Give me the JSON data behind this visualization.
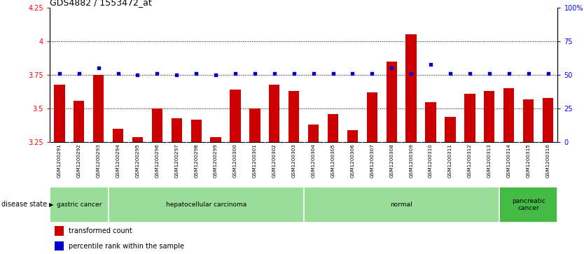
{
  "title": "GDS4882 / 1553472_at",
  "categories": [
    "GSM1200291",
    "GSM1200292",
    "GSM1200293",
    "GSM1200294",
    "GSM1200295",
    "GSM1200296",
    "GSM1200297",
    "GSM1200298",
    "GSM1200299",
    "GSM1200300",
    "GSM1200301",
    "GSM1200302",
    "GSM1200303",
    "GSM1200304",
    "GSM1200305",
    "GSM1200306",
    "GSM1200307",
    "GSM1200308",
    "GSM1200309",
    "GSM1200310",
    "GSM1200311",
    "GSM1200312",
    "GSM1200313",
    "GSM1200314",
    "GSM1200315",
    "GSM1200316"
  ],
  "red_values": [
    3.68,
    3.56,
    3.75,
    3.35,
    3.29,
    3.5,
    3.43,
    3.42,
    3.29,
    3.64,
    3.5,
    3.68,
    3.63,
    3.38,
    3.46,
    3.34,
    3.62,
    3.85,
    4.05,
    3.55,
    3.44,
    3.61,
    3.63,
    3.65,
    3.57,
    3.58
  ],
  "blue_values": [
    51,
    51,
    55,
    51,
    50,
    51,
    50,
    51,
    50,
    51,
    51,
    51,
    51,
    51,
    51,
    51,
    51,
    55,
    51,
    58,
    51,
    51,
    51,
    51,
    51,
    51
  ],
  "ylim_left": [
    3.25,
    4.25
  ],
  "ylim_right": [
    0,
    100
  ],
  "yticks_left": [
    3.25,
    3.5,
    3.75,
    4.0,
    4.25
  ],
  "yticks_right": [
    0,
    25,
    50,
    75,
    100
  ],
  "ytick_labels_left": [
    "3.25",
    "3.5",
    "3.75",
    "4",
    "4.25"
  ],
  "ytick_labels_right": [
    "0",
    "25",
    "50",
    "75",
    "100%"
  ],
  "hlines": [
    3.5,
    3.75,
    4.0
  ],
  "bar_color": "#cc0000",
  "dot_color": "#0000cc",
  "group_ranges": [
    {
      "start": 0,
      "end": 2,
      "label": "gastric cancer",
      "color": "#99dd99"
    },
    {
      "start": 3,
      "end": 12,
      "label": "hepatocellular carcinoma",
      "color": "#99dd99"
    },
    {
      "start": 13,
      "end": 22,
      "label": "normal",
      "color": "#99dd99"
    },
    {
      "start": 23,
      "end": 25,
      "label": "pancreatic\ncancer",
      "color": "#44bb44"
    }
  ],
  "tick_area_color": "#c8c8c8",
  "legend_red_label": "transformed count",
  "legend_blue_label": "percentile rank within the sample",
  "disease_state_label": "disease state"
}
